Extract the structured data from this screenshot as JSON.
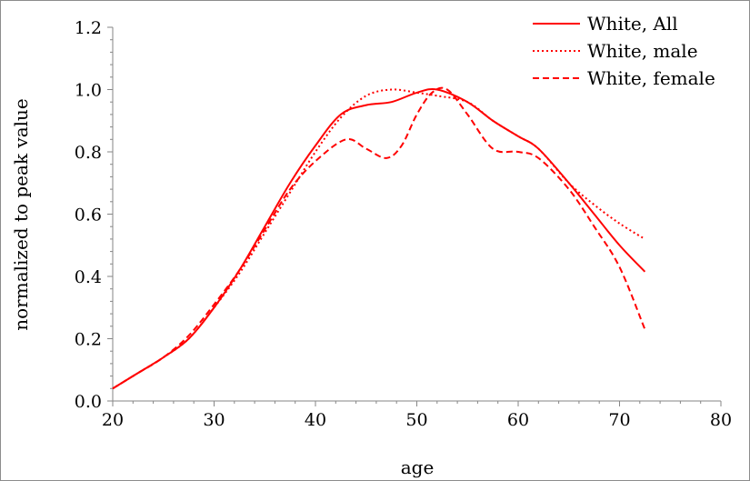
{
  "chart_data": {
    "type": "line",
    "title": "",
    "xlabel": "age",
    "ylabel": "normalized to peak value",
    "xlim": [
      20,
      80
    ],
    "ylim": [
      0.0,
      1.2
    ],
    "xticks": [
      "20",
      "30",
      "40",
      "50",
      "60",
      "70",
      "80"
    ],
    "yticks": [
      "0.0",
      "0.2",
      "0.4",
      "0.6",
      "0.8",
      "1.0",
      "1.2"
    ],
    "grid": false,
    "legend_position": "top-right",
    "series": [
      {
        "name": "White, All",
        "color": "#ff0000",
        "dash": "solid",
        "x": [
          20,
          22.5,
          25,
          27.5,
          30,
          32.5,
          35,
          37.5,
          40,
          42.5,
          45,
          47.5,
          50,
          52,
          55,
          57.5,
          60,
          62,
          65,
          67.5,
          70,
          72.5
        ],
        "y": [
          0.04,
          0.09,
          0.14,
          0.2,
          0.3,
          0.42,
          0.56,
          0.7,
          0.82,
          0.92,
          0.95,
          0.96,
          0.99,
          1.0,
          0.96,
          0.9,
          0.85,
          0.81,
          0.7,
          0.6,
          0.5,
          0.415
        ]
      },
      {
        "name": "White, male",
        "color": "#ff0000",
        "dash": "dotted",
        "x": [
          20,
          22.5,
          25,
          27.5,
          30,
          32.5,
          35,
          37.5,
          40,
          42.5,
          45,
          47.5,
          50,
          52,
          55,
          57.5,
          60,
          62,
          65,
          67.5,
          70,
          72.5
        ],
        "y": [
          0.04,
          0.09,
          0.14,
          0.2,
          0.3,
          0.41,
          0.54,
          0.67,
          0.8,
          0.91,
          0.98,
          1.0,
          0.99,
          0.98,
          0.96,
          0.9,
          0.85,
          0.81,
          0.7,
          0.63,
          0.57,
          0.52
        ]
      },
      {
        "name": "White, female",
        "color": "#ff0000",
        "dash": "dashed",
        "x": [
          20,
          22.5,
          25,
          27.5,
          30,
          32.5,
          35,
          37.5,
          40,
          43,
          45,
          47,
          48.5,
          50,
          51.5,
          53,
          55,
          57.5,
          60,
          62,
          65,
          67.5,
          70,
          72.5
        ],
        "y": [
          0.04,
          0.09,
          0.14,
          0.21,
          0.31,
          0.42,
          0.55,
          0.68,
          0.77,
          0.84,
          0.81,
          0.78,
          0.82,
          0.92,
          0.99,
          1.0,
          0.92,
          0.81,
          0.8,
          0.78,
          0.68,
          0.56,
          0.43,
          0.23
        ]
      }
    ]
  }
}
